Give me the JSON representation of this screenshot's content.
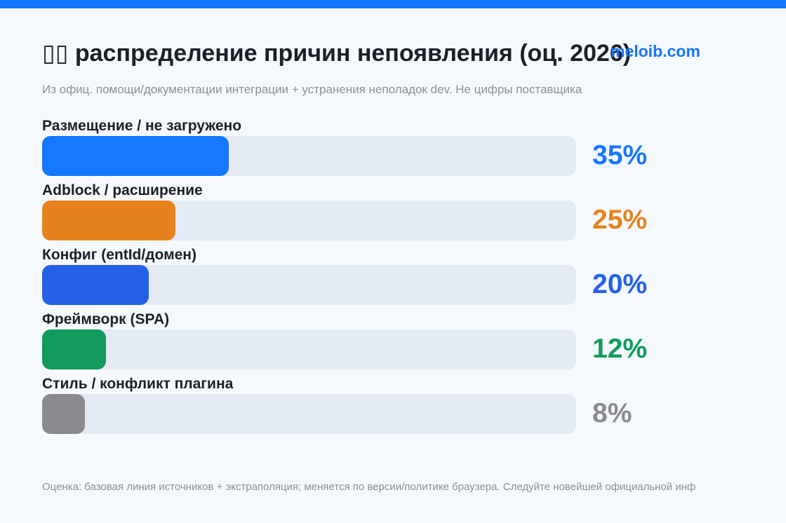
{
  "header": {
    "title": "▯▯ распределение причин непоявления (оц. 2026)",
    "brand": "meloib.com",
    "subtitle": "Из офиц. помощи/документации интеграции + устранения неполадок dev. Не цифры поставщика"
  },
  "colors": {
    "accent": "#1677ff",
    "track": "#e3eaf4",
    "background": "#f5f9fd"
  },
  "chart_data": {
    "type": "bar",
    "orientation": "horizontal",
    "title": "▯▯ распределение причин непоявления (оц. 2026)",
    "categories": [
      "Размещение / не загружено",
      "Adblock / расширение",
      "Конфиг (entId/домен)",
      "Фреймворк (SPA)",
      "Стиль / конфликт плагина"
    ],
    "values": [
      35,
      25,
      20,
      12,
      8
    ],
    "value_labels": [
      "35%",
      "25%",
      "20%",
      "12%",
      "8%"
    ],
    "colors": [
      "#1677ff",
      "#e6821e",
      "#2461e6",
      "#12995c",
      "#8a8a8f"
    ],
    "xlim": [
      0,
      100
    ],
    "grid": false
  },
  "footer": {
    "note": "Оценка: базовая линия источников + экстраполяция; меняется по версии/политике браузера. Следуйте новейшей официальной инф"
  }
}
